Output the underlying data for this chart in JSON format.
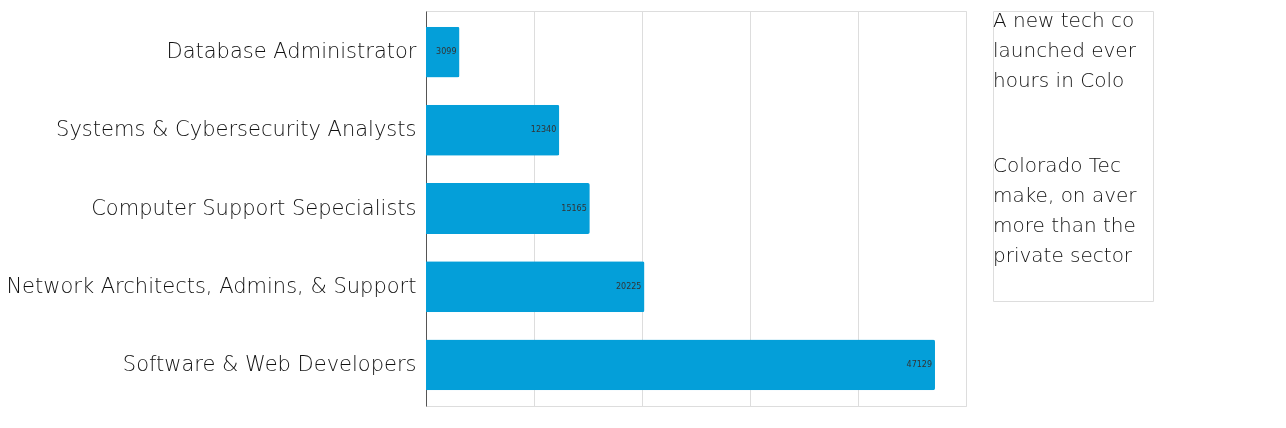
{
  "chart_data": {
    "type": "bar",
    "orientation": "horizontal",
    "categories": [
      "Database Administrator",
      "Systems & Cybersecurity Analysts",
      "Computer Support Sepecialists",
      "Network Architects, Admins, & Support",
      "Software & Web Developers"
    ],
    "values": [
      3099,
      12340,
      15165,
      20225,
      47129
    ],
    "color": "#049fd9",
    "xlim": [
      0,
      50000
    ],
    "xticks": [
      {
        "value": 0,
        "label": null
      },
      {
        "value": 10000,
        "label": null
      },
      {
        "value": 20000,
        "label": null
      },
      {
        "value": 30000,
        "label": null
      },
      {
        "value": 40000,
        "label": null
      },
      {
        "value": 50000,
        "label": null
      }
    ],
    "tick_labels": "y",
    "grid": "x",
    "data_labels": true,
    "annotations": [
      "A new tech co\nlaunched ever\nhours in Colo",
      "Colorado Tec\nmake, on aver\nmore than the\nprivate sector"
    ]
  }
}
